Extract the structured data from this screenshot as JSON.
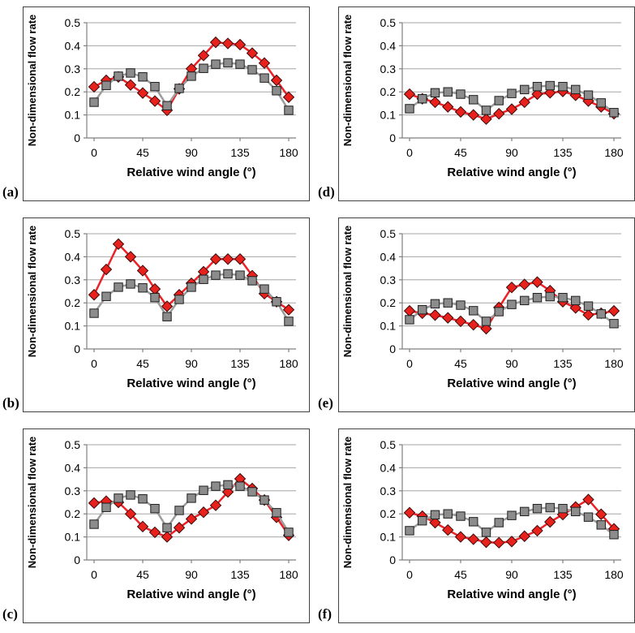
{
  "figure": {
    "ylabel": "Non-dimensional flow rate",
    "xlabel": "Relative wind angle (°)",
    "panel_labels": [
      "(a)",
      "(b)",
      "(c)",
      "(d)",
      "(e)",
      "(f)"
    ]
  },
  "colors": {
    "red_line": "#ec2227",
    "red_marker_fill": "#e8211d",
    "red_marker_stroke": "#3a0c0c",
    "gray_line": "#9c9c9c",
    "gray_marker_fill": "#8c8c8c",
    "gray_marker_stroke": "#1f1f1f",
    "gridline": "#a6a6a6",
    "axis": "#7f7f7f",
    "text": "#000000",
    "chart_border": "#424242"
  },
  "chart_data": [
    {
      "type": "line",
      "label": "(a)",
      "xlabel": "Relative wind angle (°)",
      "ylabel": "Non-dimensional flow rate",
      "x": [
        0,
        11.25,
        22.5,
        33.75,
        45,
        56.25,
        67.5,
        78.75,
        90,
        101.25,
        112.5,
        123.75,
        135,
        146.25,
        157.5,
        168.75,
        180
      ],
      "xticks": [
        0,
        45,
        90,
        135,
        180
      ],
      "yticks": [
        0,
        0.1,
        0.2,
        0.3,
        0.4,
        0.5
      ],
      "ylim": [
        0,
        0.5
      ],
      "grid": "horizontal",
      "legend": "none",
      "series": [
        {
          "name": "red-diamond",
          "marker": "diamond",
          "values": [
            0.222,
            0.25,
            0.265,
            0.23,
            0.195,
            0.16,
            0.12,
            0.213,
            0.3,
            0.358,
            0.415,
            0.41,
            0.405,
            0.368,
            0.325,
            0.25,
            0.177
          ]
        },
        {
          "name": "gray-square",
          "marker": "square",
          "values": [
            0.155,
            0.228,
            0.268,
            0.282,
            0.265,
            0.223,
            0.14,
            0.215,
            0.268,
            0.302,
            0.32,
            0.326,
            0.32,
            0.296,
            0.26,
            0.205,
            0.12
          ]
        }
      ]
    },
    {
      "type": "line",
      "label": "(b)",
      "xlabel": "Relative wind angle (°)",
      "ylabel": "Non-dimensional flow rate",
      "x": [
        0,
        11.25,
        22.5,
        33.75,
        45,
        56.25,
        67.5,
        78.75,
        90,
        101.25,
        112.5,
        123.75,
        135,
        146.25,
        157.5,
        168.75,
        180
      ],
      "xticks": [
        0,
        45,
        90,
        135,
        180
      ],
      "yticks": [
        0,
        0.1,
        0.2,
        0.3,
        0.4,
        0.5
      ],
      "ylim": [
        0,
        0.5
      ],
      "grid": "horizontal",
      "legend": "none",
      "series": [
        {
          "name": "red-diamond",
          "marker": "diamond",
          "values": [
            0.235,
            0.345,
            0.455,
            0.4,
            0.34,
            0.26,
            0.185,
            0.235,
            0.285,
            0.335,
            0.39,
            0.39,
            0.39,
            0.318,
            0.24,
            0.205,
            0.17
          ]
        },
        {
          "name": "gray-square",
          "marker": "square",
          "values": [
            0.155,
            0.228,
            0.268,
            0.282,
            0.265,
            0.223,
            0.14,
            0.215,
            0.268,
            0.302,
            0.32,
            0.326,
            0.32,
            0.296,
            0.26,
            0.205,
            0.12
          ]
        }
      ]
    },
    {
      "type": "line",
      "label": "(c)",
      "xlabel": "Relative wind angle (°)",
      "ylabel": "Non-dimensional flow rate",
      "x": [
        0,
        11.25,
        22.5,
        33.75,
        45,
        56.25,
        67.5,
        78.75,
        90,
        101.25,
        112.5,
        123.75,
        135,
        146.25,
        157.5,
        168.75,
        180
      ],
      "xticks": [
        0,
        45,
        90,
        135,
        180
      ],
      "yticks": [
        0,
        0.1,
        0.2,
        0.3,
        0.4,
        0.5
      ],
      "ylim": [
        0,
        0.5
      ],
      "grid": "horizontal",
      "legend": "none",
      "series": [
        {
          "name": "red-diamond",
          "marker": "diamond",
          "values": [
            0.247,
            0.255,
            0.25,
            0.2,
            0.145,
            0.12,
            0.1,
            0.14,
            0.178,
            0.207,
            0.237,
            0.295,
            0.352,
            0.31,
            0.26,
            0.185,
            0.107
          ]
        },
        {
          "name": "gray-square",
          "marker": "square",
          "values": [
            0.155,
            0.228,
            0.268,
            0.282,
            0.265,
            0.223,
            0.14,
            0.215,
            0.268,
            0.302,
            0.32,
            0.326,
            0.32,
            0.296,
            0.26,
            0.205,
            0.12
          ]
        }
      ]
    },
    {
      "type": "line",
      "label": "(d)",
      "xlabel": "Relative wind angle (°)",
      "ylabel": "Non-dimensional flow rate",
      "x": [
        0,
        11.25,
        22.5,
        33.75,
        45,
        56.25,
        67.5,
        78.75,
        90,
        101.25,
        112.5,
        123.75,
        135,
        146.25,
        157.5,
        168.75,
        180
      ],
      "xticks": [
        0,
        45,
        90,
        135,
        180
      ],
      "yticks": [
        0,
        0.1,
        0.2,
        0.3,
        0.4,
        0.5
      ],
      "ylim": [
        0,
        0.5
      ],
      "grid": "horizontal",
      "legend": "none",
      "series": [
        {
          "name": "red-diamond",
          "marker": "diamond",
          "values": [
            0.19,
            0.17,
            0.155,
            0.135,
            0.113,
            0.1,
            0.082,
            0.105,
            0.125,
            0.155,
            0.19,
            0.196,
            0.202,
            0.185,
            0.16,
            0.135,
            0.105
          ]
        },
        {
          "name": "gray-square",
          "marker": "square",
          "values": [
            0.127,
            0.17,
            0.196,
            0.2,
            0.19,
            0.166,
            0.12,
            0.162,
            0.193,
            0.21,
            0.223,
            0.227,
            0.223,
            0.21,
            0.186,
            0.152,
            0.11
          ]
        }
      ]
    },
    {
      "type": "line",
      "label": "(e)",
      "xlabel": "Relative wind angle (°)",
      "ylabel": "Non-dimensional flow rate",
      "x": [
        0,
        11.25,
        22.5,
        33.75,
        45,
        56.25,
        67.5,
        78.75,
        90,
        101.25,
        112.5,
        123.75,
        135,
        146.25,
        157.5,
        168.75,
        180
      ],
      "xticks": [
        0,
        45,
        90,
        135,
        180
      ],
      "yticks": [
        0,
        0.1,
        0.2,
        0.3,
        0.4,
        0.5
      ],
      "ylim": [
        0,
        0.5
      ],
      "grid": "horizontal",
      "legend": "none",
      "series": [
        {
          "name": "red-diamond",
          "marker": "diamond",
          "values": [
            0.165,
            0.155,
            0.147,
            0.135,
            0.12,
            0.105,
            0.088,
            0.18,
            0.267,
            0.28,
            0.29,
            0.253,
            0.205,
            0.178,
            0.148,
            0.155,
            0.165
          ]
        },
        {
          "name": "gray-square",
          "marker": "square",
          "values": [
            0.127,
            0.17,
            0.196,
            0.2,
            0.19,
            0.166,
            0.12,
            0.162,
            0.193,
            0.21,
            0.223,
            0.227,
            0.223,
            0.21,
            0.186,
            0.152,
            0.11
          ]
        }
      ]
    },
    {
      "type": "line",
      "label": "(f)",
      "xlabel": "Relative wind angle (°)",
      "ylabel": "Non-dimensional flow rate",
      "x": [
        0,
        11.25,
        22.5,
        33.75,
        45,
        56.25,
        67.5,
        78.75,
        90,
        101.25,
        112.5,
        123.75,
        135,
        146.25,
        157.5,
        168.75,
        180
      ],
      "xticks": [
        0,
        45,
        90,
        135,
        180
      ],
      "yticks": [
        0,
        0.1,
        0.2,
        0.3,
        0.4,
        0.5
      ],
      "ylim": [
        0,
        0.5
      ],
      "grid": "horizontal",
      "legend": "none",
      "series": [
        {
          "name": "red-diamond",
          "marker": "diamond",
          "values": [
            0.205,
            0.19,
            0.162,
            0.13,
            0.1,
            0.09,
            0.077,
            0.075,
            0.08,
            0.103,
            0.127,
            0.165,
            0.197,
            0.23,
            0.262,
            0.198,
            0.135
          ]
        },
        {
          "name": "gray-square",
          "marker": "square",
          "values": [
            0.127,
            0.17,
            0.196,
            0.2,
            0.19,
            0.166,
            0.12,
            0.162,
            0.193,
            0.21,
            0.223,
            0.227,
            0.223,
            0.21,
            0.186,
            0.152,
            0.11
          ]
        }
      ]
    }
  ]
}
